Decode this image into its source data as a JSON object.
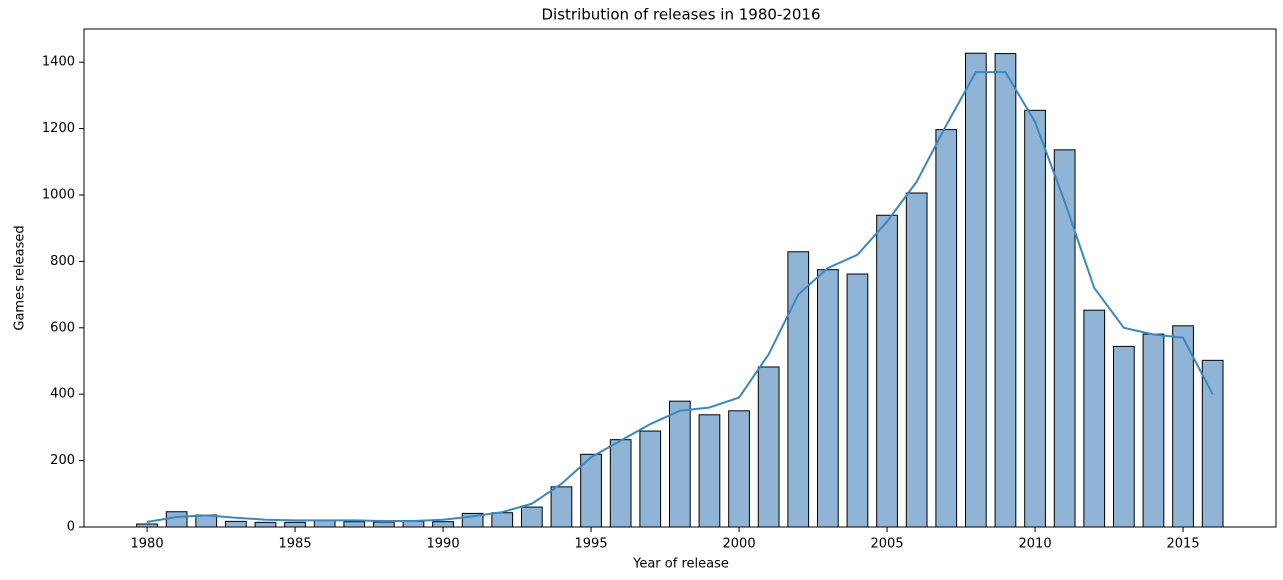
{
  "chart_data": {
    "type": "bar",
    "title": "Distribution of releases in 1980-2016",
    "xlabel": "Year of release",
    "ylabel": "Games released",
    "x": [
      1980,
      1981,
      1982,
      1983,
      1984,
      1985,
      1986,
      1987,
      1988,
      1989,
      1990,
      1991,
      1992,
      1993,
      1994,
      1995,
      1996,
      1997,
      1998,
      1999,
      2000,
      2001,
      2002,
      2003,
      2004,
      2005,
      2006,
      2007,
      2008,
      2009,
      2010,
      2011,
      2012,
      2013,
      2014,
      2015,
      2016
    ],
    "series": [
      {
        "type": "bar",
        "color": "#90b4d6",
        "edgecolor": "#000000",
        "values": [
          9,
          46,
          36,
          17,
          14,
          14,
          21,
          16,
          15,
          17,
          16,
          41,
          43,
          60,
          121,
          219,
          263,
          289,
          379,
          338,
          350,
          482,
          829,
          775,
          762,
          939,
          1006,
          1197,
          1427,
          1426,
          1255,
          1136,
          653,
          544,
          581,
          606,
          502
        ]
      },
      {
        "type": "line",
        "color": "#3a87c2",
        "values": [
          15,
          30,
          35,
          28,
          22,
          20,
          20,
          20,
          18,
          18,
          22,
          32,
          45,
          70,
          130,
          210,
          260,
          310,
          350,
          360,
          390,
          520,
          700,
          780,
          820,
          920,
          1040,
          1210,
          1370,
          1370,
          1220,
          980,
          720,
          600,
          580,
          570,
          400
        ]
      }
    ],
    "xlim": [
      1977.87,
      2018.14
    ],
    "xticks": [
      1980,
      1985,
      1990,
      1995,
      2000,
      2005,
      2010,
      2015
    ],
    "ylim": [
      0,
      1500
    ],
    "yticks": [
      0,
      200,
      400,
      600,
      800,
      1000,
      1200,
      1400
    ]
  }
}
